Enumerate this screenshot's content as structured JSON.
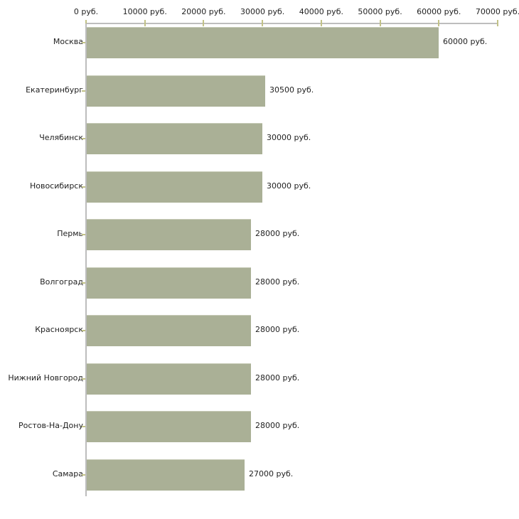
{
  "chart_data": {
    "type": "bar",
    "orientation": "horizontal",
    "title": "",
    "xlabel": "",
    "ylabel": "",
    "unit": "руб.",
    "xlim": [
      0,
      70000
    ],
    "grid": false,
    "legend": false,
    "x_ticks": [
      0,
      10000,
      20000,
      30000,
      40000,
      50000,
      60000,
      70000
    ],
    "x_tick_labels": [
      "0 руб.",
      "10000 руб.",
      "20000 руб.",
      "30000 руб.",
      "40000 руб.",
      "50000 руб.",
      "60000 руб.",
      "70000 руб."
    ],
    "categories": [
      "Москва",
      "Екатеринбург",
      "Челябинск",
      "Новосибирск",
      "Пермь",
      "Волгоград",
      "Красноярск",
      "Нижний Новгород",
      "Ростов-На-Дону",
      "Самара"
    ],
    "values": [
      60000,
      30500,
      30000,
      30000,
      28000,
      28000,
      28000,
      28000,
      28000,
      27000
    ],
    "value_labels": [
      "60000 руб.",
      "30500 руб.",
      "30000 руб.",
      "30000 руб.",
      "28000 руб.",
      "28000 руб.",
      "28000 руб.",
      "28000 руб.",
      "28000 руб.",
      "27000 руб."
    ],
    "colors": {
      "bar_fill": "#aab096",
      "bar_edge": "#c6cab6",
      "axis_line": "#bdbdbd",
      "tick_mark": "#c2c287",
      "text": "#222222",
      "background": "#ffffff"
    }
  }
}
